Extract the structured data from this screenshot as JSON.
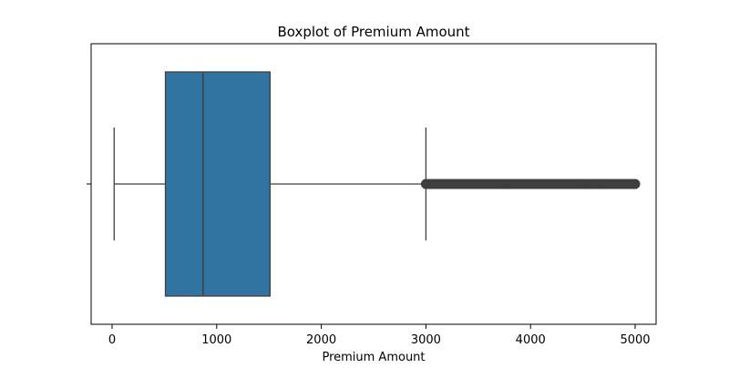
{
  "chart_data": {
    "type": "boxplot",
    "title": "Boxplot of Premium Amount",
    "xlabel": "Premium Amount",
    "ylabel": "",
    "xlim": [
      -200,
      5200
    ],
    "xticks": [
      0,
      1000,
      2000,
      3000,
      4000,
      5000
    ],
    "xtick_labels": [
      "0",
      "1000",
      "2000",
      "3000",
      "4000",
      "5000"
    ],
    "grid": false,
    "box": {
      "whisker_low": 20,
      "q1": 510,
      "median": 870,
      "q3": 1510,
      "whisker_high": 3000
    },
    "outliers_range": [
      3000,
      5000
    ],
    "colors": {
      "box_fill": "#3274a1",
      "line": "#3f3f3f",
      "outlier": "#3f3f3f"
    }
  }
}
